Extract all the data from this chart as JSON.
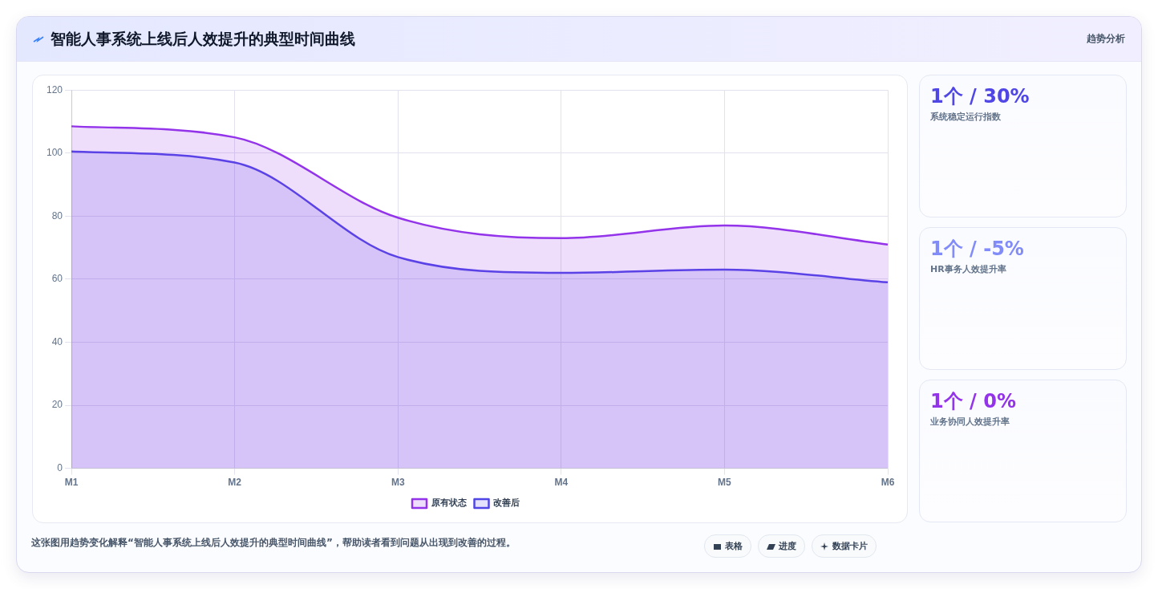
{
  "chart_data": [
    {
      "type": "area",
      "title": "智能人事系统上线后人效提升的典型时间曲线",
      "categories": [
        "M1",
        "M2",
        "M3",
        "M4",
        "M5",
        "M6"
      ],
      "series": [
        {
          "name": "原有状态",
          "color": "#9333ea",
          "values": [
            108.5,
            105,
            79.5,
            73,
            77,
            71
          ]
        },
        {
          "name": "改善后",
          "color": "#4f46e5",
          "values": [
            100.5,
            97,
            67,
            62,
            63,
            59
          ]
        }
      ],
      "ylim": [
        0,
        120
      ],
      "yticks": [
        0,
        20,
        40,
        60,
        80,
        100,
        120
      ],
      "grid": true,
      "legend": "bottom",
      "marker": "none",
      "annotations": [
        "趋势分析",
        "这张图用趋势变化解释“智能人事系统上线后人效提升的典型时间曲线”，帮助读者看到问题从出现到改善的过程。",
        "表格",
        "进度",
        "数据卡片"
      ]
    },
    {
      "type": "other",
      "title": "1个 / 30%",
      "subtitle": "系统稳定运行指数",
      "color": "#4f46e5"
    },
    {
      "type": "other",
      "title": "1个 / -5%",
      "subtitle": "HR事务人效提升率",
      "color": "#818cf8"
    },
    {
      "type": "other",
      "title": "1个 / 0%",
      "subtitle": "业务协同人效提升率",
      "color": "#9333ea"
    }
  ]
}
